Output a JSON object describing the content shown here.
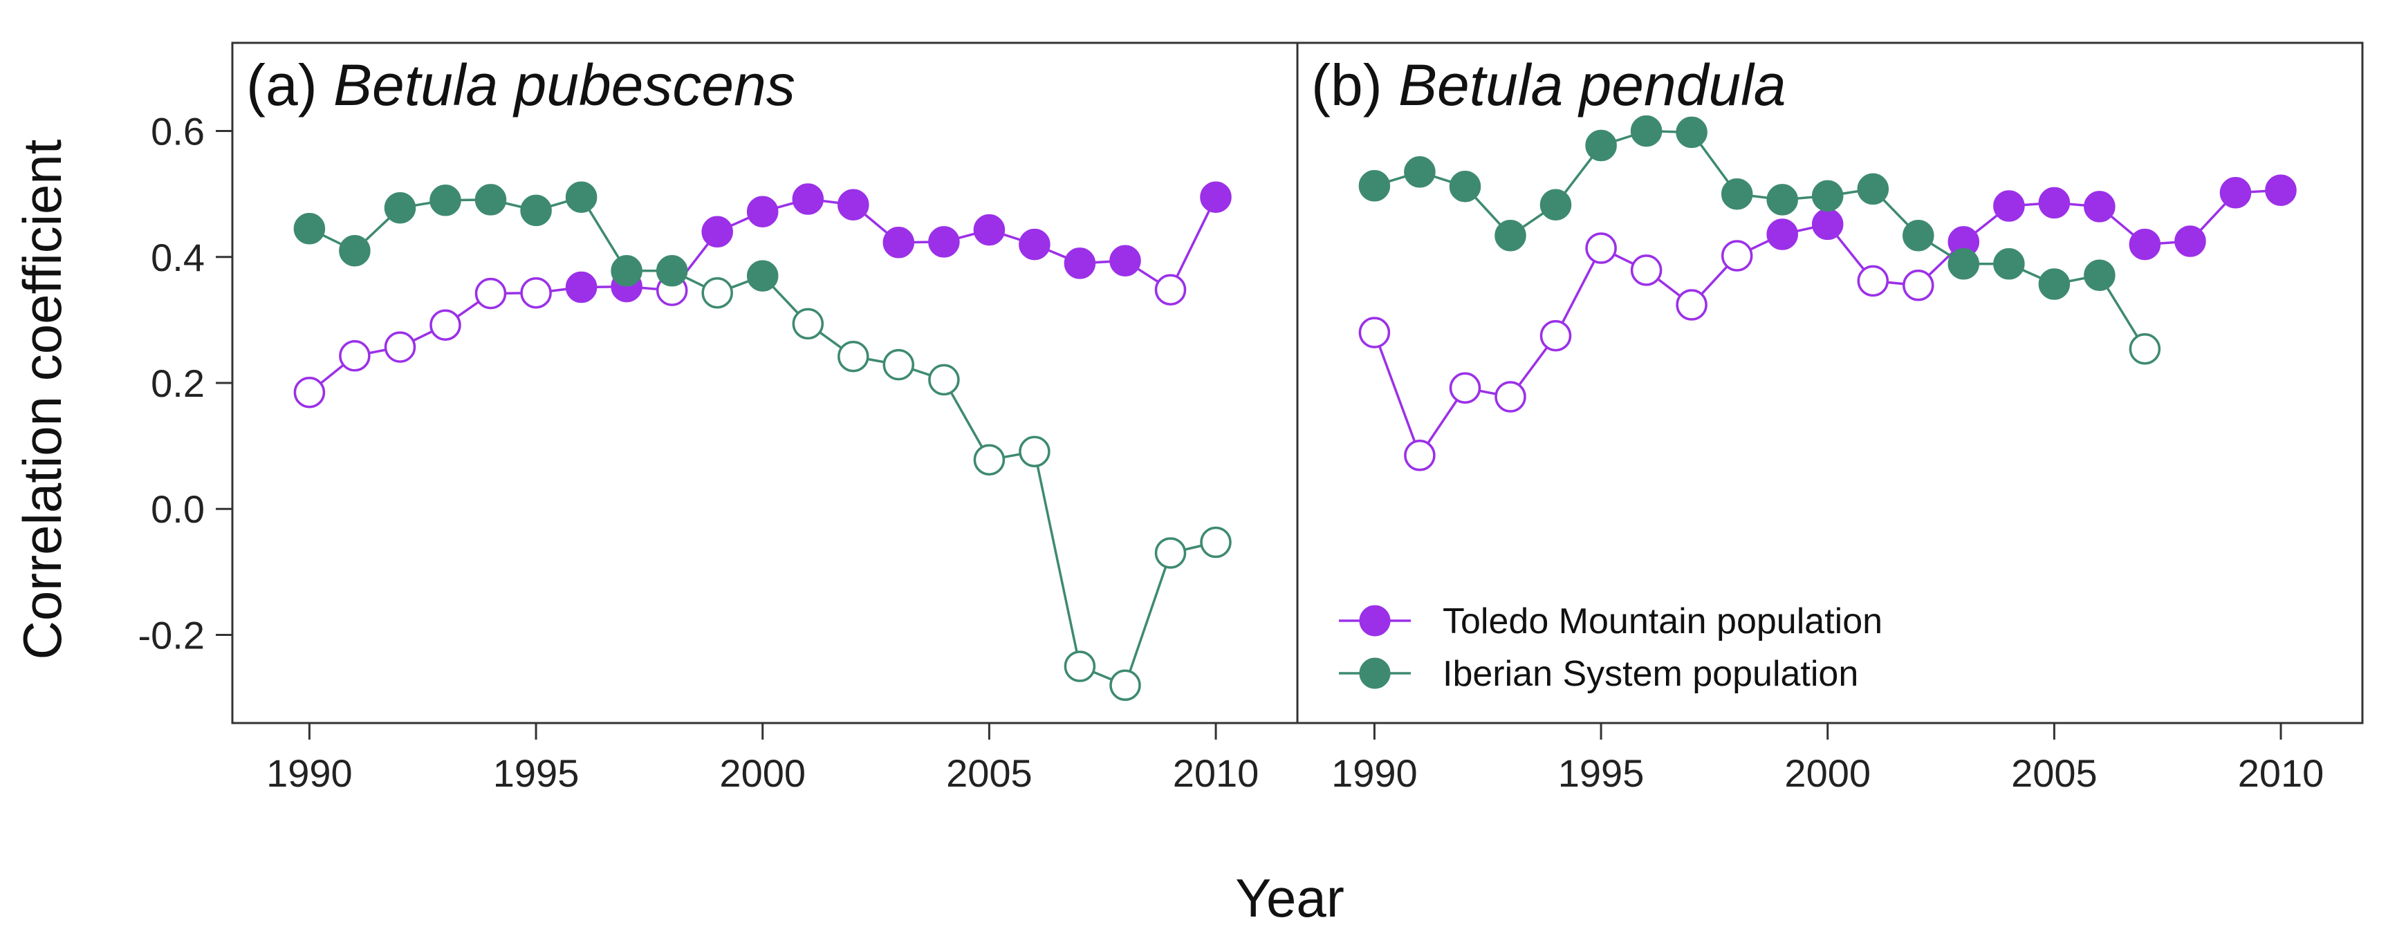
{
  "chart_data": {
    "type": "line",
    "ylabel": "Correlation coefficient",
    "xlabel": "Year",
    "ylim": [
      -0.34,
      0.74
    ],
    "yticks": [
      -0.2,
      0.0,
      0.2,
      0.4,
      0.6
    ],
    "ytick_labels": [
      "-0.2",
      "0.0",
      "0.2",
      "0.4",
      "0.6"
    ],
    "xlim": [
      1988.3,
      2011.8
    ],
    "xticks": [
      1990,
      1995,
      2000,
      2005,
      2010
    ],
    "xtick_labels": [
      "1990",
      "1995",
      "2000",
      "2005",
      "2010"
    ],
    "colors": {
      "toledo": "#9b30e8",
      "iberian": "#3e8a70"
    },
    "legend": {
      "position": "bottom-left of panel (b)",
      "entries": [
        {
          "label": "Toledo Mountain population",
          "series": "toledo"
        },
        {
          "label": "Iberian System population",
          "series": "iberian"
        }
      ]
    },
    "marker_note": "Filled circle = filled marker in original; open circle = open marker in original",
    "panels": [
      {
        "letter": "(a)",
        "species": "Betula pubescens",
        "series": [
          {
            "name": "Toledo Mountain population",
            "key": "toledo",
            "x": [
              1990,
              1991,
              1992,
              1993,
              1994,
              1995,
              1996,
              1997,
              1998,
              1999,
              2000,
              2001,
              2002,
              2003,
              2004,
              2005,
              2006,
              2007,
              2008,
              2009,
              2010
            ],
            "y": [
              0.185,
              0.243,
              0.257,
              0.292,
              0.342,
              0.343,
              0.352,
              0.353,
              0.347,
              0.44,
              0.472,
              0.492,
              0.483,
              0.423,
              0.424,
              0.443,
              0.42,
              0.39,
              0.394,
              0.348,
              0.495
            ],
            "filled": [
              false,
              false,
              false,
              false,
              false,
              false,
              true,
              true,
              false,
              true,
              true,
              true,
              true,
              true,
              true,
              true,
              true,
              true,
              true,
              false,
              true
            ]
          },
          {
            "name": "Iberian System population",
            "key": "iberian",
            "x": [
              1990,
              1991,
              1992,
              1993,
              1994,
              1995,
              1996,
              1997,
              1998,
              1999,
              2000,
              2001,
              2002,
              2003,
              2004,
              2005,
              2006,
              2007,
              2008,
              2009,
              2010
            ],
            "y": [
              0.445,
              0.41,
              0.478,
              0.49,
              0.491,
              0.474,
              0.495,
              0.378,
              0.378,
              0.343,
              0.37,
              0.294,
              0.242,
              0.229,
              0.205,
              0.078,
              0.091,
              -0.25,
              -0.28,
              -0.07,
              -0.053
            ],
            "filled": [
              true,
              true,
              true,
              true,
              true,
              true,
              true,
              true,
              true,
              false,
              true,
              false,
              false,
              false,
              false,
              false,
              false,
              false,
              false,
              false,
              false
            ]
          }
        ]
      },
      {
        "letter": "(b)",
        "species": "Betula pendula",
        "series": [
          {
            "name": "Toledo Mountain population",
            "key": "toledo",
            "x": [
              1990,
              1991,
              1992,
              1993,
              1994,
              1995,
              1996,
              1997,
              1998,
              1999,
              2000,
              2001,
              2002,
              2003,
              2004,
              2005,
              2006,
              2007,
              2008,
              2009,
              2010
            ],
            "y": [
              0.28,
              0.085,
              0.192,
              0.178,
              0.275,
              0.414,
              0.379,
              0.324,
              0.402,
              0.436,
              0.452,
              0.362,
              0.355,
              0.424,
              0.481,
              0.486,
              0.48,
              0.42,
              0.425,
              0.502,
              0.506
            ],
            "filled": [
              false,
              false,
              false,
              false,
              false,
              false,
              false,
              false,
              false,
              true,
              true,
              false,
              false,
              true,
              true,
              true,
              true,
              true,
              true,
              true,
              true
            ]
          },
          {
            "name": "Iberian System population",
            "key": "iberian",
            "x": [
              1990,
              1991,
              1992,
              1993,
              1994,
              1995,
              1996,
              1997,
              1998,
              1999,
              2000,
              2001,
              2002,
              2003,
              2004,
              2005,
              2006,
              2007
            ],
            "y": [
              0.513,
              0.535,
              0.512,
              0.434,
              0.483,
              0.577,
              0.6,
              0.598,
              0.5,
              0.491,
              0.497,
              0.508,
              0.434,
              0.389,
              0.389,
              0.357,
              0.371,
              0.254
            ],
            "filled": [
              true,
              true,
              true,
              true,
              true,
              true,
              true,
              true,
              true,
              true,
              true,
              true,
              true,
              true,
              true,
              true,
              true,
              false
            ]
          }
        ]
      }
    ]
  }
}
